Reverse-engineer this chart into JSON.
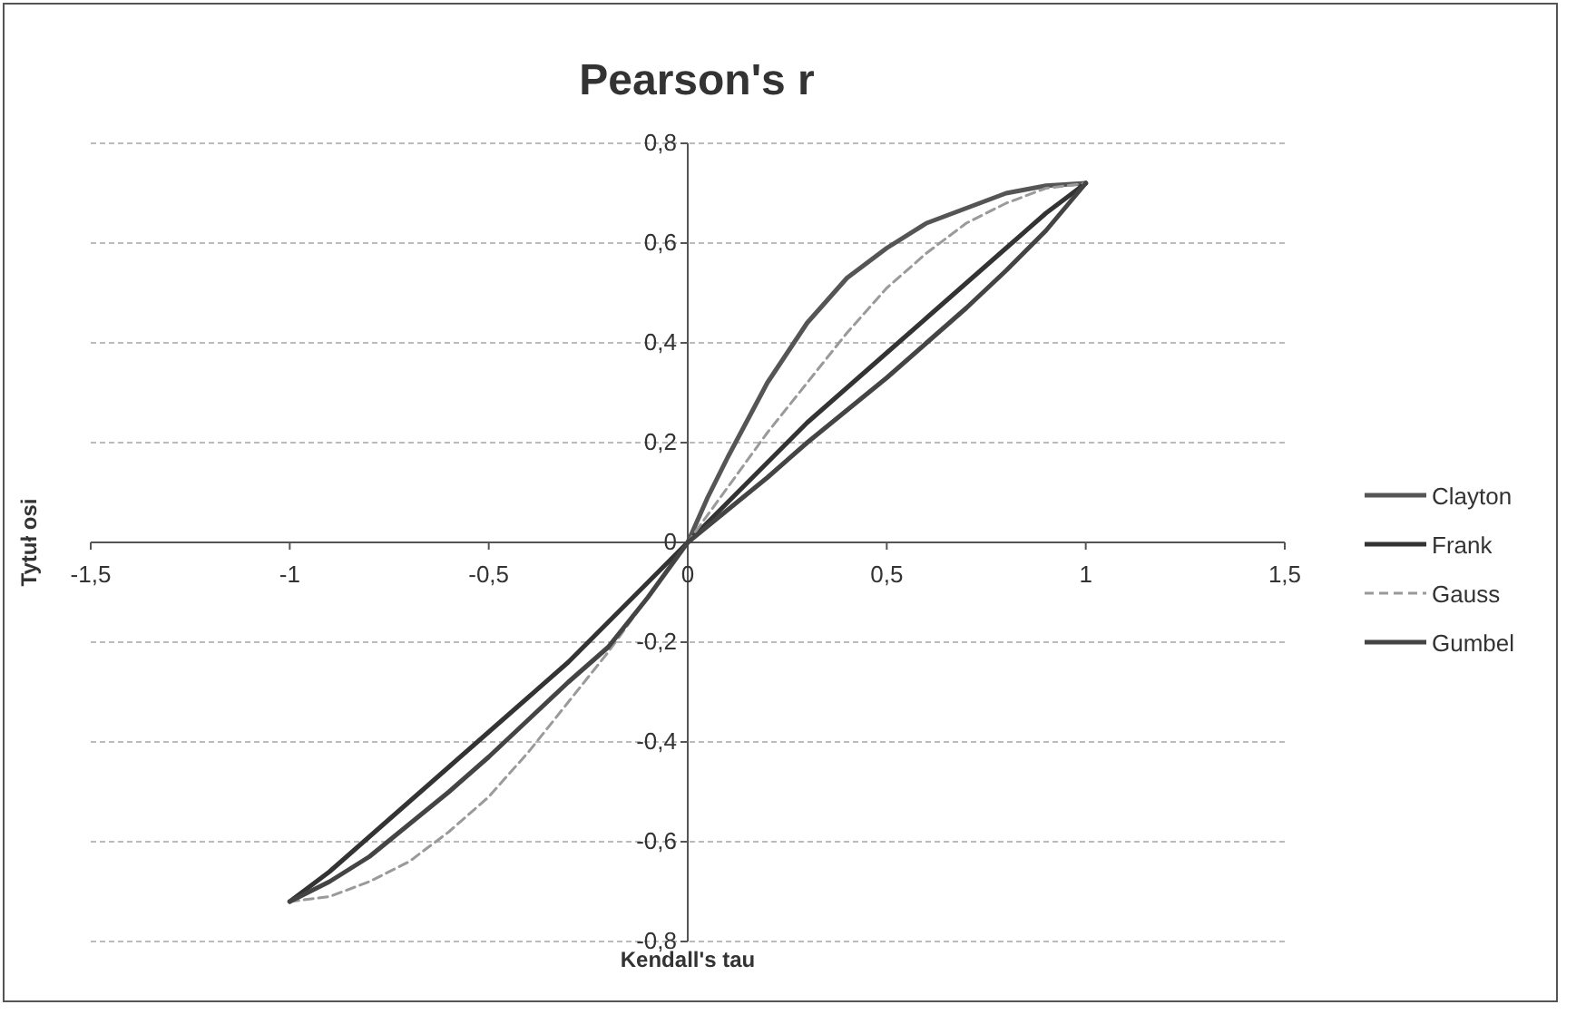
{
  "chart_data": {
    "type": "line",
    "title": "Pearson's r",
    "xlabel": "Kendall's tau",
    "ylabel": "Tytuł osi",
    "xlim": [
      -1.5,
      1.5
    ],
    "ylim": [
      -0.8,
      0.8
    ],
    "xticks": [
      {
        "value": -1.5,
        "label": "-1,5"
      },
      -1,
      {
        "value": -0.5,
        "label": "-0,5"
      },
      0,
      {
        "value": 0.5,
        "label": "0,5"
      },
      1,
      {
        "value": 1.5,
        "label": "1,5"
      }
    ],
    "yticks": [
      {
        "value": -0.8,
        "label": "-0,8"
      },
      {
        "value": -0.6,
        "label": "-0,6"
      },
      {
        "value": -0.4,
        "label": "-0,4"
      },
      {
        "value": -0.2,
        "label": "-0,2"
      },
      0,
      {
        "value": 0.2,
        "label": "0,2"
      },
      {
        "value": 0.4,
        "label": "0,4"
      },
      {
        "value": 0.6,
        "label": "0,6"
      },
      {
        "value": 0.8,
        "label": "0,8"
      }
    ],
    "grid": "y",
    "legend": "right",
    "marker": "none",
    "series": [
      {
        "name": "Clayton",
        "color": "#555555",
        "line_style": "solid",
        "x": [
          0,
          0.05,
          0.1,
          0.2,
          0.3,
          0.4,
          0.5,
          0.6,
          0.7,
          0.8,
          0.9,
          1
        ],
        "values": [
          0,
          0.09,
          0.17,
          0.32,
          0.44,
          0.53,
          0.59,
          0.64,
          0.67,
          0.7,
          0.715,
          0.72
        ]
      },
      {
        "name": "Frank",
        "color": "#333333",
        "line_style": "solid",
        "x": [
          -1,
          -0.9,
          -0.8,
          -0.7,
          -0.6,
          -0.5,
          -0.4,
          -0.3,
          -0.2,
          -0.1,
          0,
          0.1,
          0.2,
          0.3,
          0.4,
          0.5,
          0.6,
          0.7,
          0.8,
          0.9,
          1
        ],
        "values": [
          -0.72,
          -0.66,
          -0.59,
          -0.52,
          -0.45,
          -0.38,
          -0.31,
          -0.24,
          -0.16,
          -0.08,
          0,
          0.08,
          0.16,
          0.24,
          0.31,
          0.38,
          0.45,
          0.52,
          0.59,
          0.66,
          0.72
        ]
      },
      {
        "name": "Gauss",
        "color": "#9a9a9a",
        "line_style": "dashed",
        "x": [
          -1,
          -0.9,
          -0.8,
          -0.7,
          -0.6,
          -0.5,
          -0.4,
          -0.3,
          -0.2,
          -0.1,
          0,
          0.1,
          0.2,
          0.3,
          0.4,
          0.5,
          0.6,
          0.7,
          0.8,
          0.9,
          1
        ],
        "values": [
          -0.72,
          -0.71,
          -0.68,
          -0.64,
          -0.58,
          -0.51,
          -0.42,
          -0.32,
          -0.22,
          -0.11,
          0,
          0.11,
          0.22,
          0.32,
          0.42,
          0.51,
          0.58,
          0.64,
          0.68,
          0.71,
          0.72
        ]
      },
      {
        "name": "Gumbel",
        "color": "#444444",
        "line_style": "solid",
        "x": [
          -1,
          -0.9,
          -0.8,
          -0.7,
          -0.6,
          -0.5,
          -0.4,
          -0.3,
          -0.2,
          -0.1,
          0,
          0.1,
          0.2,
          0.3,
          0.4,
          0.5,
          0.6,
          0.7,
          0.8,
          0.9,
          1
        ],
        "values": [
          -0.72,
          -0.68,
          -0.63,
          -0.565,
          -0.5,
          -0.43,
          -0.355,
          -0.28,
          -0.21,
          -0.11,
          0,
          0.065,
          0.13,
          0.2,
          0.265,
          0.33,
          0.4,
          0.47,
          0.545,
          0.625,
          0.72
        ]
      }
    ]
  }
}
